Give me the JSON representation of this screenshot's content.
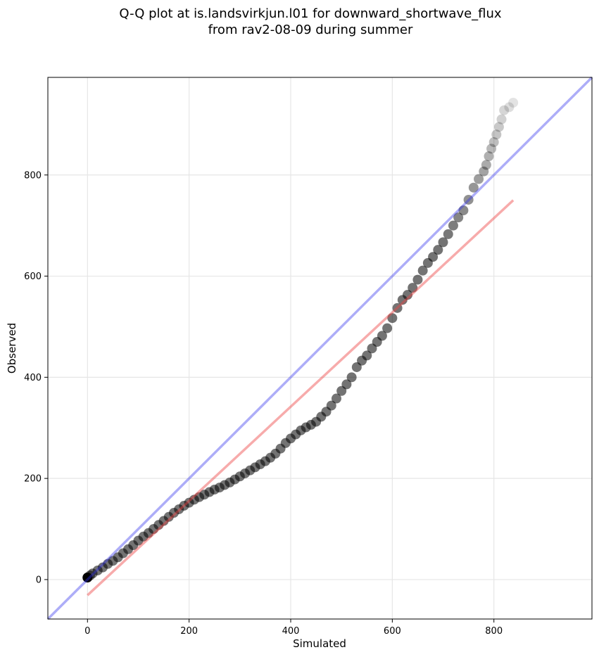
{
  "chart_data": {
    "type": "scatter",
    "title_line1": "Q-Q plot at is.landsvirkjun.l01 for downward_shortwave_flux",
    "title_line2": "from rav2-08-09 during summer",
    "xlabel": "Simulated",
    "ylabel": "Observed",
    "xlim": [
      -78,
      993
    ],
    "ylim": [
      -78,
      993
    ],
    "xticks": [
      0,
      200,
      400,
      600,
      800
    ],
    "yticks": [
      0,
      200,
      400,
      600,
      800
    ],
    "xtick_labels": [
      "0",
      "200",
      "400",
      "600",
      "800"
    ],
    "ytick_labels": [
      "0",
      "200",
      "400",
      "600",
      "800"
    ],
    "grid": true,
    "colors": {
      "points": "#000000",
      "identity_line": "#3333ee",
      "fit_line": "#ee4444"
    },
    "series": [
      {
        "kind": "quantiles",
        "points": [
          [
            0,
            4
          ],
          [
            5,
            8
          ],
          [
            10,
            12
          ],
          [
            20,
            18
          ],
          [
            30,
            24
          ],
          [
            40,
            31
          ],
          [
            50,
            37
          ],
          [
            60,
            44
          ],
          [
            70,
            52
          ],
          [
            80,
            60
          ],
          [
            90,
            68
          ],
          [
            100,
            77
          ],
          [
            110,
            85
          ],
          [
            120,
            92
          ],
          [
            130,
            100
          ],
          [
            140,
            108
          ],
          [
            150,
            116
          ],
          [
            160,
            124
          ],
          [
            170,
            132
          ],
          [
            180,
            139
          ],
          [
            190,
            146
          ],
          [
            200,
            152
          ],
          [
            210,
            158
          ],
          [
            220,
            163
          ],
          [
            230,
            168
          ],
          [
            240,
            173
          ],
          [
            250,
            178
          ],
          [
            260,
            182
          ],
          [
            270,
            187
          ],
          [
            280,
            192
          ],
          [
            290,
            198
          ],
          [
            300,
            204
          ],
          [
            310,
            210
          ],
          [
            320,
            216
          ],
          [
            330,
            222
          ],
          [
            340,
            228
          ],
          [
            350,
            234
          ],
          [
            360,
            241
          ],
          [
            370,
            249
          ],
          [
            380,
            259
          ],
          [
            390,
            270
          ],
          [
            400,
            279
          ],
          [
            410,
            287
          ],
          [
            420,
            295
          ],
          [
            430,
            301
          ],
          [
            440,
            306
          ],
          [
            450,
            312
          ],
          [
            460,
            322
          ],
          [
            470,
            332
          ],
          [
            480,
            344
          ],
          [
            490,
            358
          ],
          [
            500,
            373
          ],
          [
            510,
            386
          ],
          [
            520,
            400
          ],
          [
            530,
            420
          ],
          [
            540,
            433
          ],
          [
            550,
            443
          ],
          [
            560,
            457
          ],
          [
            570,
            470
          ],
          [
            580,
            482
          ],
          [
            590,
            497
          ],
          [
            600,
            517
          ],
          [
            610,
            537
          ],
          [
            620,
            553
          ],
          [
            630,
            563
          ],
          [
            640,
            577
          ],
          [
            650,
            593
          ],
          [
            660,
            611
          ],
          [
            670,
            626
          ],
          [
            680,
            638
          ],
          [
            690,
            652
          ],
          [
            700,
            667
          ],
          [
            710,
            683
          ],
          [
            720,
            700
          ],
          [
            730,
            716
          ],
          [
            740,
            730
          ],
          [
            750,
            751
          ],
          [
            760,
            775
          ],
          [
            770,
            792
          ],
          [
            780,
            807
          ],
          [
            785,
            820
          ],
          [
            790,
            837
          ],
          [
            795,
            852
          ],
          [
            800,
            865
          ],
          [
            805,
            880
          ],
          [
            810,
            895
          ],
          [
            815,
            910
          ],
          [
            820,
            928
          ],
          [
            830,
            934
          ],
          [
            838,
            943
          ]
        ]
      },
      {
        "kind": "identity",
        "points": [
          [
            -78,
            -78
          ],
          [
            993,
            993
          ]
        ]
      },
      {
        "kind": "fit",
        "points": [
          [
            0,
            -31
          ],
          [
            838,
            750
          ]
        ]
      }
    ]
  }
}
